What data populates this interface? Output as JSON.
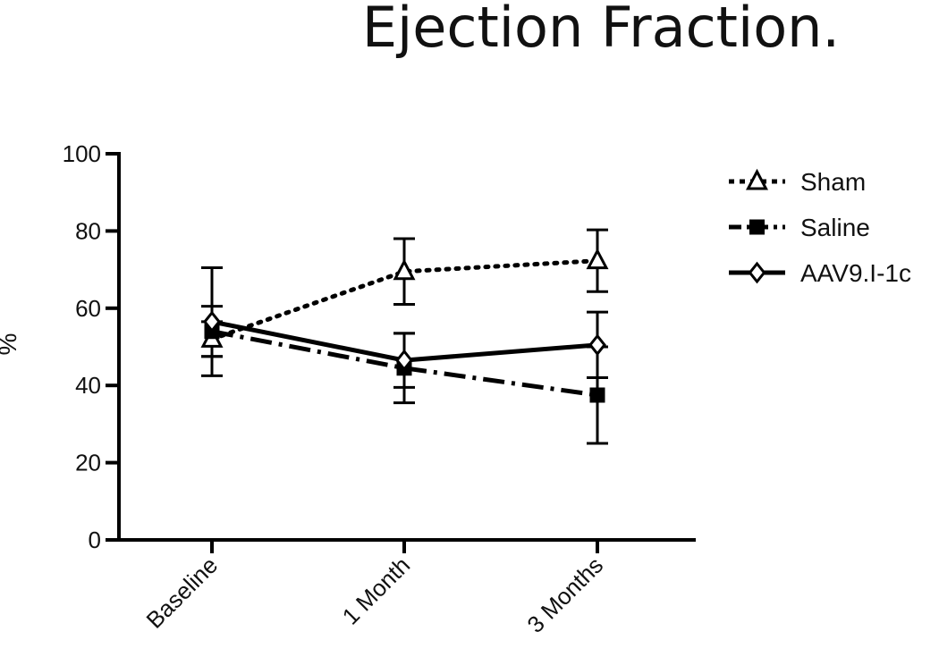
{
  "chart_data": {
    "type": "line",
    "title": "Ejection Fraction.",
    "xlabel": "",
    "ylabel": "%",
    "categories": [
      "Baseline",
      "1 Month",
      "3 Months"
    ],
    "ylim": [
      0,
      100
    ],
    "yticks": [
      0,
      20,
      40,
      60,
      80,
      100
    ],
    "grid": false,
    "legend_position": "top-right",
    "series": [
      {
        "name": "Sham",
        "values": [
          52,
          69.5,
          72.3
        ],
        "err": [
          4.5,
          8.5,
          8
        ],
        "marker": "triangle-open",
        "line": "dotted",
        "color": "#000000"
      },
      {
        "name": "Saline",
        "values": [
          54,
          44.5,
          37.5
        ],
        "err": [
          6.5,
          9,
          12.5
        ],
        "marker": "square-filled",
        "line": "dash-dot",
        "color": "#000000"
      },
      {
        "name": "AAV9.I-1c",
        "values": [
          56.5,
          46.5,
          50.5
        ],
        "err": [
          14,
          7,
          8.5
        ],
        "marker": "diamond-open",
        "line": "solid",
        "color": "#000000"
      }
    ]
  }
}
